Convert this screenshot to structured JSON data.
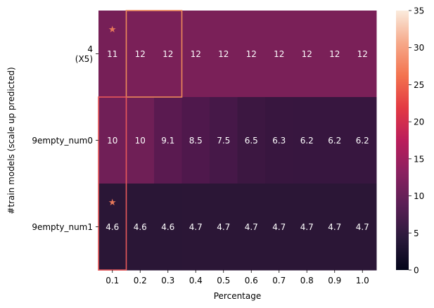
{
  "chart_data": {
    "type": "heatmap",
    "xlabel": "Percentage",
    "ylabel": "#train models (scale up predicted)",
    "x_categories": [
      "0.1",
      "0.2",
      "0.3",
      "0.4",
      "0.5",
      "0.6",
      "0.7",
      "0.8",
      "0.9",
      "1.0"
    ],
    "y_categories": [
      [
        "4",
        "(X5)"
      ],
      [
        "9empty_num0"
      ],
      [
        "9empty_num1"
      ]
    ],
    "values": [
      [
        11,
        12,
        12,
        12,
        12,
        12,
        12,
        12,
        12,
        12
      ],
      [
        10,
        10,
        9.1,
        8.5,
        7.5,
        6.5,
        6.3,
        6.2,
        6.2,
        6.2
      ],
      [
        4.6,
        4.6,
        4.6,
        4.7,
        4.7,
        4.7,
        4.7,
        4.7,
        4.7,
        4.7
      ]
    ],
    "cell_labels": [
      [
        "11",
        "12",
        "12",
        "12",
        "12",
        "12",
        "12",
        "12",
        "12",
        "12"
      ],
      [
        "10",
        "10",
        "9.1",
        "8.5",
        "7.5",
        "6.5",
        "6.3",
        "6.2",
        "6.2",
        "6.2"
      ],
      [
        "4.6",
        "4.6",
        "4.6",
        "4.7",
        "4.7",
        "4.7",
        "4.7",
        "4.7",
        "4.7",
        "4.7"
      ]
    ],
    "cell_colors": [
      [
        "#761f57",
        "#7a2058",
        "#7a2058",
        "#7a2058",
        "#7a2058",
        "#7a2058",
        "#7a2058",
        "#7a2058",
        "#7a2058",
        "#7a2058"
      ],
      [
        "#701f57",
        "#6f1f56",
        "#5a1a50",
        "#4f184c",
        "#461848",
        "#3c1741",
        "#38163f",
        "#37163f",
        "#37163f",
        "#37163f"
      ],
      [
        "#2a1636",
        "#2a1636",
        "#2a1636",
        "#2b1636",
        "#2b1636",
        "#2b1636",
        "#2b1636",
        "#2b1636",
        "#2b1636",
        "#2b1636"
      ]
    ],
    "markers": [
      {
        "row": 0,
        "col": 0,
        "symbol": "★"
      },
      {
        "row": 2,
        "col": 0,
        "symbol": "★"
      }
    ],
    "highlight_boxes": [
      {
        "rows": [
          0,
          0
        ],
        "cols": [
          1,
          2
        ],
        "color": "#ee8a5a"
      },
      {
        "rows": [
          1,
          2
        ],
        "cols": [
          0,
          0
        ],
        "color": "#e8595a"
      }
    ],
    "colorbar": {
      "min": 0,
      "max": 35,
      "ticks": [
        0,
        5,
        10,
        15,
        20,
        25,
        30,
        35
      ],
      "colormap": "rocket",
      "stops": [
        "#03051a",
        "#2b1a3c",
        "#5a1f55",
        "#8a2160",
        "#bb1e5b",
        "#e33a43",
        "#f3734f",
        "#f6a98a",
        "#faebdd"
      ]
    },
    "marker_color": "#e8795a",
    "text_color": "#ffffff"
  }
}
